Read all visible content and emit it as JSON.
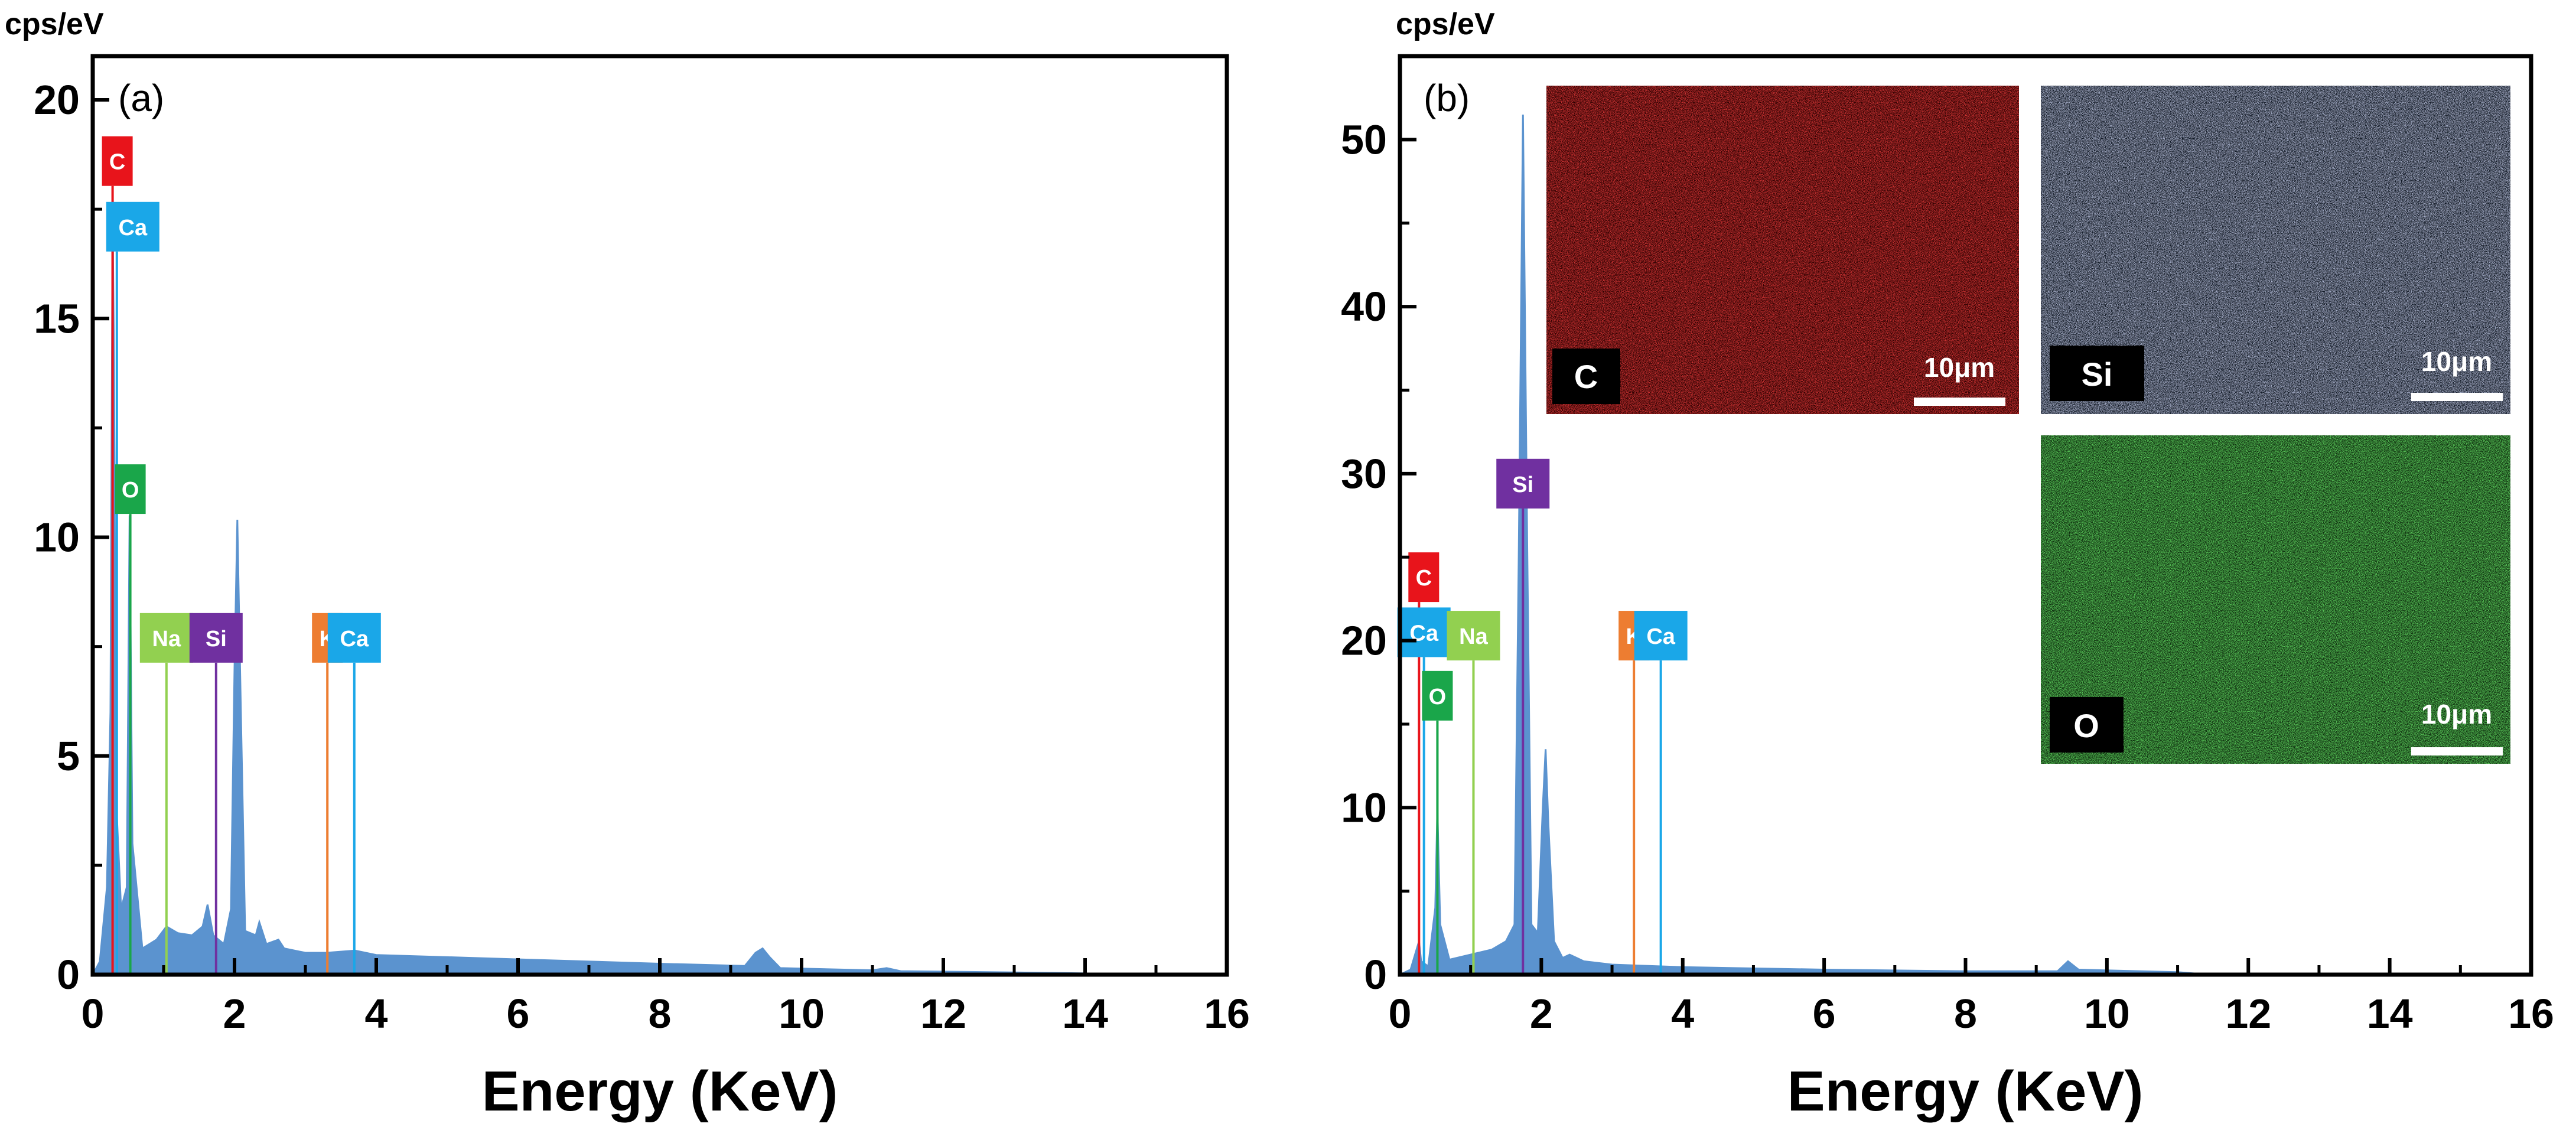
{
  "colors": {
    "spectrum": "#5b93cf",
    "C": "#e8141b",
    "Ca": "#1aa7e8",
    "O": "#1aa64a",
    "Na": "#92d050",
    "Si": "#7030a0",
    "K": "#ed7d31",
    "map_C": "#e01010",
    "map_Si": "#8090c8",
    "map_O": "#28c828"
  },
  "chart_data": [
    {
      "type": "area",
      "panel_label": "(a)",
      "unit_label": "cps/eV",
      "xlabel": "Energy (KeV)",
      "xlim": [
        0,
        16
      ],
      "ylim": [
        0,
        21
      ],
      "x_ticks": [
        "0",
        "2",
        "4",
        "6",
        "8",
        "10",
        "12",
        "14",
        "16"
      ],
      "y_ticks": [
        "0",
        "5",
        "10",
        "15",
        "20"
      ],
      "x_tick_values": [
        0,
        2,
        4,
        6,
        8,
        10,
        12,
        14,
        16
      ],
      "y_tick_values": [
        0,
        5,
        10,
        15,
        20
      ],
      "spectrum": [
        [
          0,
          0
        ],
        [
          0.1,
          0.3
        ],
        [
          0.2,
          2
        ],
        [
          0.25,
          6
        ],
        [
          0.28,
          17.5
        ],
        [
          0.3,
          14
        ],
        [
          0.33,
          4
        ],
        [
          0.4,
          1.5
        ],
        [
          0.48,
          2
        ],
        [
          0.52,
          10.5
        ],
        [
          0.56,
          3
        ],
        [
          0.7,
          0.6
        ],
        [
          0.9,
          0.8
        ],
        [
          1.04,
          1.1
        ],
        [
          1.2,
          0.95
        ],
        [
          1.4,
          0.9
        ],
        [
          1.55,
          1.1
        ],
        [
          1.62,
          1.6
        ],
        [
          1.7,
          0.9
        ],
        [
          1.85,
          0.7
        ],
        [
          1.95,
          1.5
        ],
        [
          2.0,
          7
        ],
        [
          2.04,
          10.4
        ],
        [
          2.09,
          6
        ],
        [
          2.15,
          1
        ],
        [
          2.3,
          0.9
        ],
        [
          2.35,
          1.2
        ],
        [
          2.45,
          0.7
        ],
        [
          2.62,
          0.8
        ],
        [
          2.7,
          0.6
        ],
        [
          3.0,
          0.5
        ],
        [
          3.3,
          0.5
        ],
        [
          3.7,
          0.55
        ],
        [
          4,
          0.45
        ],
        [
          6,
          0.35
        ],
        [
          8,
          0.25
        ],
        [
          9.2,
          0.2
        ],
        [
          9.35,
          0.5
        ],
        [
          9.45,
          0.6
        ],
        [
          9.55,
          0.4
        ],
        [
          9.7,
          0.15
        ],
        [
          11,
          0.1
        ],
        [
          11.2,
          0.15
        ],
        [
          11.4,
          0.08
        ],
        [
          13,
          0.05
        ],
        [
          14,
          0.03
        ]
      ],
      "element_markers": [
        {
          "element": "C",
          "energy": 0.28,
          "label_y": 18.6
        },
        {
          "element": "Ca",
          "energy": 0.34,
          "label_y": 17.1
        },
        {
          "element": "O",
          "energy": 0.53,
          "label_y": 11.1
        },
        {
          "element": "Na",
          "energy": 1.04,
          "label_y": 7.7
        },
        {
          "element": "Si",
          "energy": 1.74,
          "label_y": 7.7
        },
        {
          "element": "K",
          "energy": 3.31,
          "label_y": 7.7
        },
        {
          "element": "Ca",
          "energy": 3.69,
          "label_y": 7.7
        }
      ]
    },
    {
      "type": "area",
      "panel_label": "(b)",
      "unit_label": "cps/eV",
      "xlabel": "Energy (KeV)",
      "xlim": [
        0,
        16
      ],
      "ylim": [
        0,
        55
      ],
      "x_ticks": [
        "0",
        "2",
        "4",
        "6",
        "8",
        "10",
        "12",
        "14",
        "16"
      ],
      "y_ticks": [
        "0",
        "10",
        "20",
        "30",
        "40",
        "50"
      ],
      "x_tick_values": [
        0,
        2,
        4,
        6,
        8,
        10,
        12,
        14,
        16
      ],
      "y_tick_values": [
        0,
        10,
        20,
        30,
        40,
        50
      ],
      "spectrum": [
        [
          0,
          0
        ],
        [
          0.15,
          0.3
        ],
        [
          0.27,
          2
        ],
        [
          0.3,
          0.8
        ],
        [
          0.4,
          0.5
        ],
        [
          0.5,
          4
        ],
        [
          0.53,
          10
        ],
        [
          0.57,
          3
        ],
        [
          0.7,
          0.9
        ],
        [
          1.0,
          1.2
        ],
        [
          1.3,
          1.5
        ],
        [
          1.5,
          2
        ],
        [
          1.62,
          3
        ],
        [
          1.68,
          25
        ],
        [
          1.74,
          51.5
        ],
        [
          1.8,
          26
        ],
        [
          1.86,
          3
        ],
        [
          1.95,
          2.5
        ],
        [
          2.02,
          10
        ],
        [
          2.06,
          13.5
        ],
        [
          2.1,
          9
        ],
        [
          2.18,
          2
        ],
        [
          2.3,
          1
        ],
        [
          2.4,
          1.2
        ],
        [
          2.6,
          0.8
        ],
        [
          3,
          0.6
        ],
        [
          4,
          0.45
        ],
        [
          6,
          0.3
        ],
        [
          8,
          0.2
        ],
        [
          9.3,
          0.2
        ],
        [
          9.45,
          0.8
        ],
        [
          9.6,
          0.3
        ],
        [
          11,
          0.15
        ],
        [
          11.3,
          0.05
        ],
        [
          12,
          0
        ]
      ],
      "element_markers": [
        {
          "element": "C",
          "energy": 0.27,
          "label_y": 23.8
        },
        {
          "element": "Ca",
          "energy": 0.34,
          "label_y": 20.5
        },
        {
          "element": "O",
          "energy": 0.53,
          "label_y": 16.7
        },
        {
          "element": "Na",
          "energy": 1.04,
          "label_y": 20.3
        },
        {
          "element": "Si",
          "energy": 1.74,
          "label_y": 29.4
        },
        {
          "element": "K",
          "energy": 3.31,
          "label_y": 20.3
        },
        {
          "element": "Ca",
          "energy": 3.69,
          "label_y": 20.3
        }
      ]
    }
  ],
  "insets": [
    {
      "element": "C",
      "scale_label": "10μm"
    },
    {
      "element": "Si",
      "scale_label": "10μm"
    },
    {
      "element": "O",
      "scale_label": "10μm"
    }
  ]
}
